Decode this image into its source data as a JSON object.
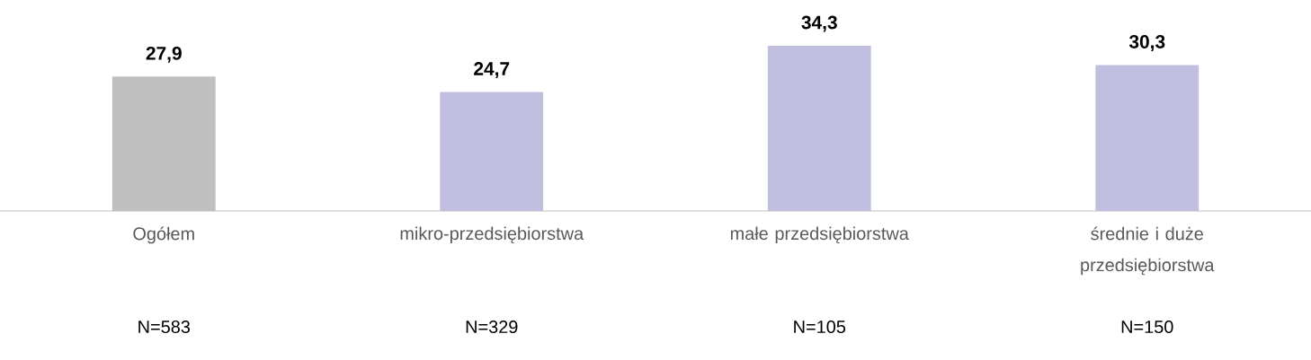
{
  "chart_data": {
    "type": "bar",
    "categories": [
      "Ogółem",
      "mikro-przedsiębiorstwa",
      "małe przedsiębiorstwa",
      "średnie i duże przedsiębiorstwa"
    ],
    "values": [
      27.9,
      24.7,
      34.3,
      30.3
    ],
    "value_labels": [
      "27,9",
      "24,7",
      "34,3",
      "30,3"
    ],
    "colors": [
      "#bfbfbf",
      "#c0bfdf",
      "#c0bfdf",
      "#c0bfdf"
    ],
    "annotations": [
      "N=583",
      "N=329",
      "N=105",
      "N=150"
    ]
  }
}
